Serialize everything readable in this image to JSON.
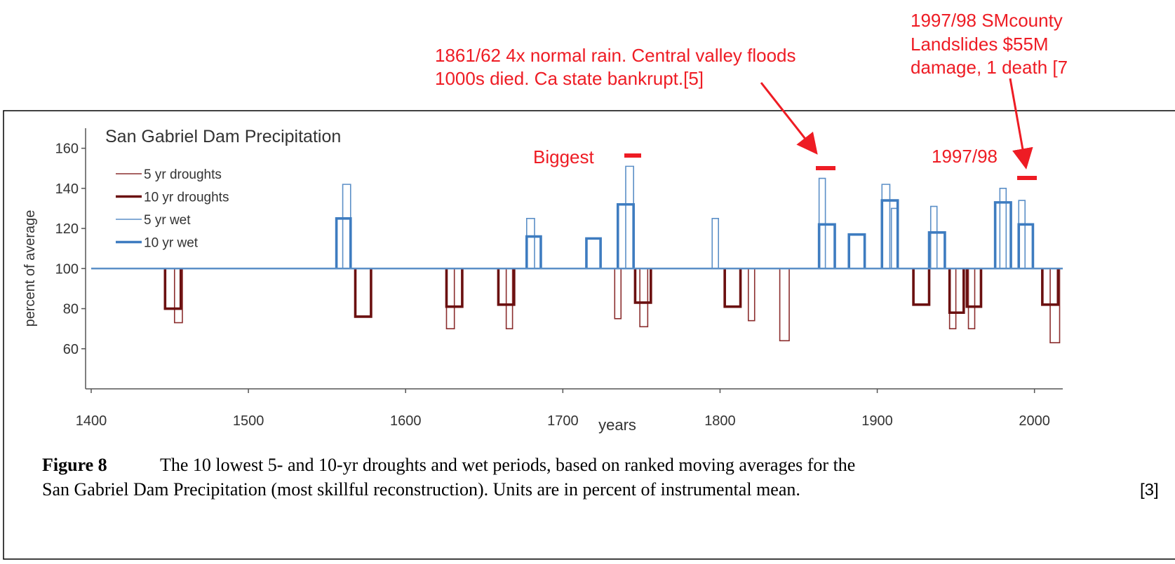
{
  "annotations": {
    "event_1862": [
      "1861/62 4x normal rain. Central valley floods",
      "1000s died. Ca state bankrupt.[5]"
    ],
    "event_1998": [
      "1997/98 SMcounty",
      "Landslides $55M",
      "damage, 1 death [7"
    ],
    "biggest": "Biggest",
    "label_1998": "1997/98"
  },
  "chart_data": {
    "type": "step",
    "title": "San Gabriel Dam Precipitation",
    "xlabel": "years",
    "ylabel": "percent of average",
    "xlim": [
      1400,
      2018
    ],
    "ylim": [
      40,
      170
    ],
    "xticks": [
      1400,
      1500,
      1600,
      1700,
      1800,
      1900,
      2000
    ],
    "yticks": [
      60,
      80,
      100,
      120,
      140,
      160
    ],
    "baseline": 100,
    "series": [
      {
        "name": "5 yr droughts",
        "color": "#8b2e2e",
        "starts": [
          1453,
          1626,
          1664,
          1733,
          1749,
          1818,
          1838,
          1946,
          1958,
          2010
        ],
        "ends": [
          1458,
          1631,
          1668,
          1737,
          1754,
          1822,
          1844,
          1950,
          1962,
          2016
        ],
        "values": [
          73,
          70,
          70,
          75,
          71,
          74,
          64,
          70,
          70,
          63
        ]
      },
      {
        "name": "10 yr droughts",
        "color": "#6b1010",
        "starts": [
          1447,
          1568,
          1626,
          1659,
          1746,
          1803,
          1923,
          1946,
          1957,
          2005
        ],
        "ends": [
          1457,
          1578,
          1636,
          1669,
          1756,
          1813,
          1933,
          1955,
          1966,
          2015
        ],
        "values": [
          80,
          76,
          81,
          82,
          83,
          81,
          82,
          78,
          81,
          82
        ]
      },
      {
        "name": "5 yr wet",
        "color": "#5b8fc7",
        "starts": [
          1560,
          1677,
          1740,
          1795,
          1863,
          1903,
          1909,
          1934,
          1978,
          1990
        ],
        "ends": [
          1565,
          1682,
          1745,
          1799,
          1867,
          1908,
          1913,
          1938,
          1982,
          1994
        ],
        "values": [
          142,
          125,
          151,
          125,
          145,
          142,
          130,
          131,
          140,
          134
        ]
      },
      {
        "name": "10 yr wet",
        "color": "#3e7cc0",
        "starts": [
          1556,
          1677,
          1715,
          1735,
          1863,
          1882,
          1903,
          1933,
          1975,
          1990
        ],
        "ends": [
          1565,
          1686,
          1724,
          1745,
          1873,
          1892,
          1913,
          1943,
          1985,
          1999
        ],
        "values": [
          125,
          116,
          115,
          132,
          122,
          117,
          134,
          118,
          133,
          122
        ]
      }
    ]
  },
  "caption": {
    "label": "Figure 8",
    "lines": [
      "The 10 lowest 5- and 10-yr droughts and wet periods, based on ranked moving averages for the",
      "San Gabriel Dam Precipitation (most skillful reconstruction). Units are in percent of instrumental mean."
    ],
    "ref": "[3]"
  }
}
